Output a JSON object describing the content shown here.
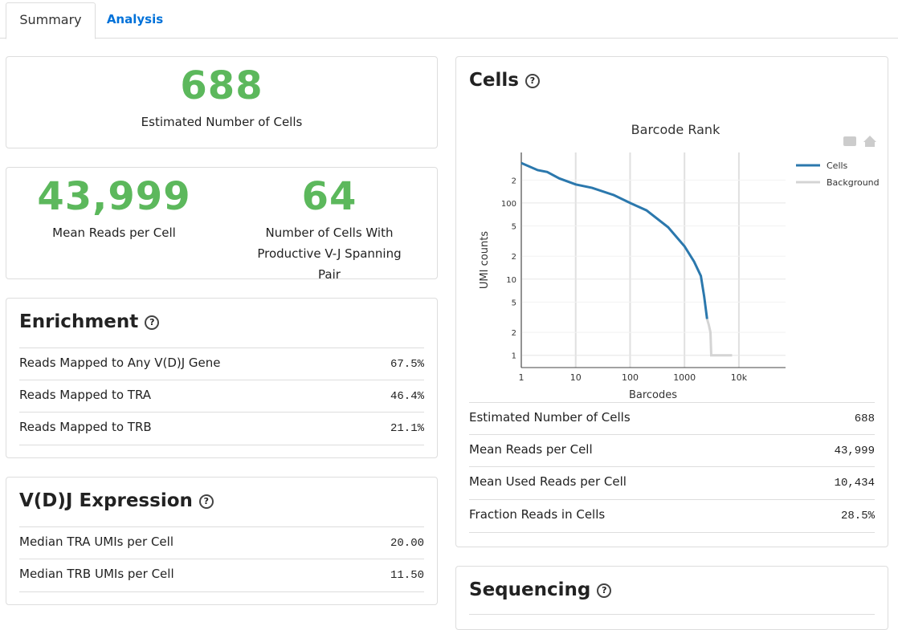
{
  "tabs": [
    "Summary",
    "Analysis"
  ],
  "hero": {
    "value": "688",
    "label": "Estimated Number of Cells"
  },
  "metrics": [
    {
      "value": "43,999",
      "label": "Mean Reads per Cell"
    },
    {
      "value": "64",
      "label": "Number of Cells With Productive V-J Spanning Pair"
    }
  ],
  "enrichment": {
    "title": "Enrichment",
    "help": "?",
    "rows": [
      [
        "Reads Mapped to Any V(D)J Gene",
        "67.5%"
      ],
      [
        "Reads Mapped to TRA",
        "46.4%"
      ],
      [
        "Reads Mapped to TRB",
        "21.1%"
      ]
    ]
  },
  "vdj_expression": {
    "title": "V(D)J Expression",
    "help": "?",
    "rows": [
      [
        "Median TRA UMIs per Cell",
        "20.00"
      ],
      [
        "Median TRB UMIs per Cell",
        "11.50"
      ]
    ]
  },
  "cells": {
    "title": "Cells",
    "help": "?",
    "rows": [
      [
        "Estimated Number of Cells",
        "688"
      ],
      [
        "Mean Reads per Cell",
        "43,999"
      ],
      [
        "Mean Used Reads per Cell",
        "10,434"
      ],
      [
        "Fraction Reads in Cells",
        "28.5%"
      ]
    ]
  },
  "sequencing": {
    "title": "Sequencing",
    "help": "?"
  },
  "chart_data": {
    "type": "line",
    "title": "Barcode Rank",
    "x_label": "Barcodes",
    "y_label": "UMI counts",
    "xlog": true,
    "ylog": true,
    "grid": true,
    "legend": "top-right",
    "xlim": [
      1,
      72000
    ],
    "ylim": [
      0.69,
      460
    ],
    "xticks": [
      1,
      10,
      100,
      1000,
      {
        "value": 10000,
        "label": "10k"
      }
    ],
    "yticks": [
      1,
      {
        "value": 2,
        "label": "2"
      },
      {
        "value": 5,
        "label": "5"
      },
      10,
      {
        "value": 20,
        "label": "2"
      },
      {
        "value": 50,
        "label": "5"
      },
      100,
      {
        "value": 200,
        "label": "2"
      }
    ],
    "series": [
      {
        "name": "Cells",
        "color": "#2b78ad",
        "x": [
          1,
          2,
          3,
          5,
          10,
          20,
          50,
          100,
          200,
          500,
          1000,
          1500,
          2000,
          2300,
          2600
        ],
        "values": [
          335,
          270,
          255,
          210,
          175,
          158,
          127,
          100,
          80,
          48,
          27,
          17,
          11,
          5.9,
          3
        ]
      },
      {
        "name": "Background",
        "color": "#d4d4d4",
        "x": [
          2600,
          2800,
          3000,
          3100,
          7500
        ],
        "values": [
          3,
          2.5,
          2,
          1,
          1
        ]
      }
    ]
  }
}
